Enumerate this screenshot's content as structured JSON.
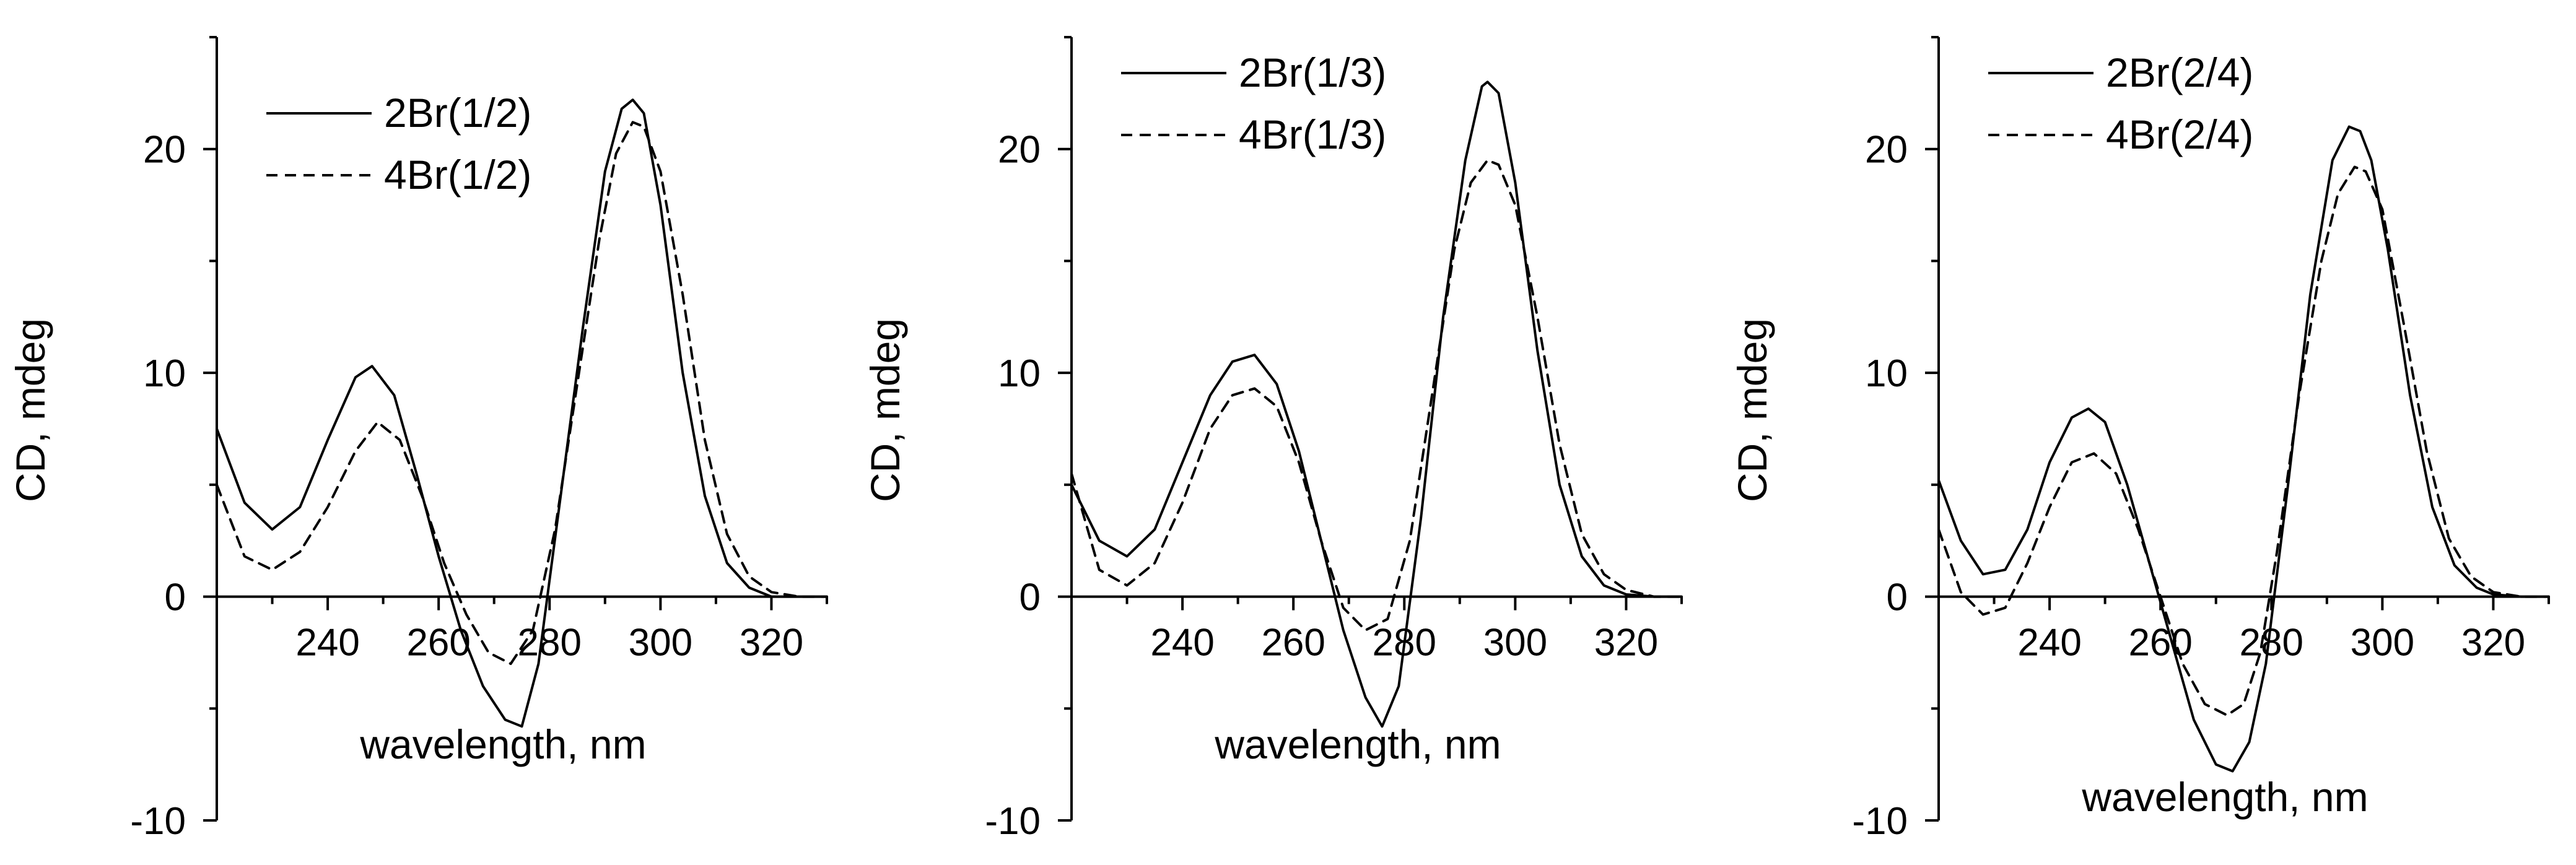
{
  "chart_data": [
    {
      "type": "line",
      "xlabel": "wavelength, nm",
      "ylabel": "CD, mdeg",
      "xlim": [
        220,
        330
      ],
      "ylim": [
        -10,
        25
      ],
      "xticks": [
        240,
        260,
        280,
        300,
        320
      ],
      "yticks": [
        -10,
        0,
        10,
        20
      ],
      "legend": "top-left",
      "series": [
        {
          "name": "2Br(1/2)",
          "style": "solid",
          "x": [
            220,
            225,
            230,
            235,
            240,
            245,
            248,
            252,
            256,
            260,
            264,
            268,
            272,
            275,
            278,
            282,
            286,
            290,
            293,
            295,
            297,
            300,
            304,
            308,
            312,
            316,
            320,
            325,
            330
          ],
          "y": [
            7.5,
            4.2,
            3.0,
            4.0,
            7.0,
            9.8,
            10.3,
            9.0,
            5.5,
            1.8,
            -1.5,
            -4.0,
            -5.5,
            -5.8,
            -3.0,
            4.5,
            12.0,
            19.0,
            21.8,
            22.2,
            21.6,
            17.5,
            10.0,
            4.5,
            1.5,
            0.4,
            0.0,
            0.0,
            0.0
          ]
        },
        {
          "name": "4Br(1/2)",
          "style": "dashed",
          "x": [
            220,
            225,
            230,
            235,
            240,
            245,
            249,
            253,
            257,
            261,
            265,
            269,
            273,
            277,
            281,
            285,
            289,
            292,
            295,
            297,
            300,
            304,
            308,
            312,
            316,
            320,
            325,
            330
          ],
          "y": [
            5.0,
            1.8,
            1.2,
            2.0,
            4.0,
            6.5,
            7.8,
            7.0,
            4.5,
            1.5,
            -0.8,
            -2.5,
            -3.0,
            -1.5,
            3.0,
            9.5,
            16.0,
            19.8,
            21.2,
            21.0,
            19.0,
            13.5,
            7.0,
            2.8,
            0.9,
            0.2,
            0.0,
            0.0
          ]
        }
      ]
    },
    {
      "type": "line",
      "xlabel": "wavelength, nm",
      "ylabel": "CD, mdeg",
      "xlim": [
        220,
        330
      ],
      "ylim": [
        -10,
        25
      ],
      "xticks": [
        240,
        260,
        280,
        300,
        320
      ],
      "yticks": [
        -10,
        0,
        10,
        20
      ],
      "legend": "top-left",
      "series": [
        {
          "name": "2Br(1/3)",
          "style": "solid",
          "x": [
            220,
            225,
            230,
            235,
            240,
            245,
            249,
            253,
            257,
            261,
            265,
            269,
            273,
            276,
            279,
            283,
            287,
            291,
            294,
            295,
            297,
            300,
            304,
            308,
            312,
            316,
            320,
            325,
            330
          ],
          "y": [
            5.0,
            2.5,
            1.8,
            3.0,
            6.0,
            9.0,
            10.5,
            10.8,
            9.5,
            6.5,
            2.5,
            -1.5,
            -4.5,
            -5.8,
            -4.0,
            3.5,
            12.5,
            19.5,
            22.8,
            23.0,
            22.5,
            18.5,
            11.0,
            5.0,
            1.8,
            0.5,
            0.1,
            0.0,
            0.0
          ]
        },
        {
          "name": "4Br(1/3)",
          "style": "dashed",
          "x": [
            220,
            225,
            230,
            235,
            240,
            245,
            249,
            253,
            257,
            261,
            265,
            269,
            273,
            277,
            281,
            285,
            289,
            292,
            295,
            297,
            300,
            304,
            308,
            312,
            316,
            320,
            325,
            330
          ],
          "y": [
            5.5,
            1.2,
            0.5,
            1.5,
            4.2,
            7.5,
            9.0,
            9.3,
            8.5,
            6.0,
            2.5,
            -0.5,
            -1.5,
            -1.0,
            2.5,
            9.0,
            15.5,
            18.5,
            19.5,
            19.3,
            17.5,
            12.5,
            6.8,
            2.8,
            1.0,
            0.3,
            0.0,
            0.0
          ]
        }
      ]
    },
    {
      "type": "line",
      "xlabel": "wavelength, nm",
      "ylabel": "CD, mdeg",
      "xlim": [
        220,
        330
      ],
      "ylim": [
        -10,
        25
      ],
      "xticks": [
        240,
        260,
        280,
        300,
        320
      ],
      "yticks": [
        -10,
        0,
        10,
        20
      ],
      "legend": "top-left",
      "series": [
        {
          "name": "2Br(2/4)",
          "style": "solid",
          "x": [
            220,
            224,
            228,
            232,
            236,
            240,
            244,
            247,
            250,
            254,
            258,
            262,
            266,
            270,
            273,
            276,
            279,
            283,
            287,
            291,
            294,
            296,
            298,
            301,
            305,
            309,
            313,
            317,
            320,
            325,
            330
          ],
          "y": [
            5.2,
            2.5,
            1.0,
            1.2,
            3.0,
            6.0,
            8.0,
            8.4,
            7.8,
            5.0,
            1.5,
            -2.0,
            -5.5,
            -7.5,
            -7.8,
            -6.5,
            -3.0,
            5.0,
            13.5,
            19.5,
            21.0,
            20.8,
            19.5,
            15.5,
            9.0,
            4.0,
            1.4,
            0.4,
            0.1,
            0.0,
            0.0
          ]
        },
        {
          "name": "4Br(2/4)",
          "style": "dashed",
          "x": [
            220,
            224,
            228,
            232,
            236,
            240,
            244,
            248,
            252,
            256,
            260,
            264,
            268,
            272,
            275,
            278,
            281,
            285,
            289,
            292,
            295,
            297,
            300,
            304,
            308,
            312,
            316,
            320,
            325,
            330
          ],
          "y": [
            3.0,
            0.2,
            -0.8,
            -0.5,
            1.5,
            4.0,
            6.0,
            6.4,
            5.5,
            3.0,
            0.0,
            -3.0,
            -4.8,
            -5.3,
            -4.8,
            -2.5,
            2.0,
            9.0,
            15.0,
            18.0,
            19.2,
            19.0,
            17.3,
            12.0,
            6.5,
            2.6,
            0.9,
            0.2,
            0.0,
            0.0
          ]
        }
      ]
    }
  ]
}
